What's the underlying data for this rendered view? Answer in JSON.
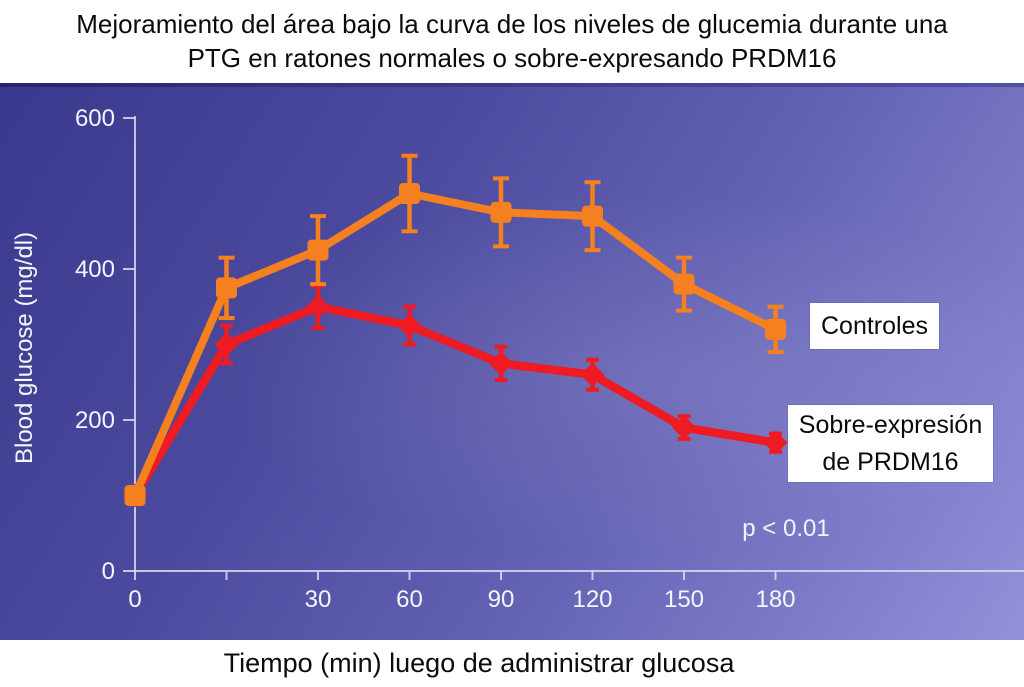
{
  "slide": {
    "title_lines": [
      "Mejoramiento del área bajo la curva de los niveles de glucemia durante una",
      "PTG en ratones normales o sobre-expresando PRDM16"
    ],
    "x_axis_title": "Tiempo (min) luego de administrar glucosa",
    "y_axis_title": "Blood glucose (mg/dl)",
    "annotation": "p < 0.01"
  },
  "legend": {
    "controles_label": "Controles",
    "prdm16_lines": [
      "Sobre-expresión",
      "de PRDM16"
    ]
  },
  "colors": {
    "controles": "#f5801f",
    "prdm16": "#ee1b23",
    "axis": "#dcdcef",
    "tick_text": "#f5f5fc",
    "background_top_left": "#3a398e",
    "background_bottom_right": "#9391d9"
  },
  "chart_data": {
    "type": "line",
    "title": "Mejoramiento del área bajo la curva de los niveles de glucemia durante una PTG en ratones normales o sobre-expresando PRDM16",
    "xlabel": "Tiempo (min) luego de administrar glucosa",
    "ylabel": "Blood glucose (mg/dl)",
    "x": [
      0,
      15,
      30,
      60,
      90,
      120,
      150,
      180
    ],
    "x_tick_labels": [
      "0",
      "",
      "30",
      "60",
      "90",
      "120",
      "150",
      "180"
    ],
    "x_spacing": "categorical-even",
    "y_ticks": [
      0,
      200,
      400,
      600
    ],
    "ylim": [
      0,
      600
    ],
    "grid": false,
    "legend_position": "inside-right",
    "annotation": "p < 0.01",
    "series": [
      {
        "name": "Controles",
        "color": "#f5801f",
        "marker": "square",
        "values": [
          100,
          375,
          425,
          500,
          475,
          470,
          380,
          320
        ],
        "errors": [
          0,
          40,
          45,
          50,
          45,
          45,
          35,
          30
        ]
      },
      {
        "name": "Sobre-expresión de PRDM16",
        "color": "#ee1b23",
        "marker": "diamond",
        "values": [
          100,
          300,
          350,
          325,
          275,
          260,
          190,
          170
        ],
        "errors": [
          0,
          25,
          28,
          25,
          22,
          20,
          15,
          12
        ]
      }
    ]
  }
}
